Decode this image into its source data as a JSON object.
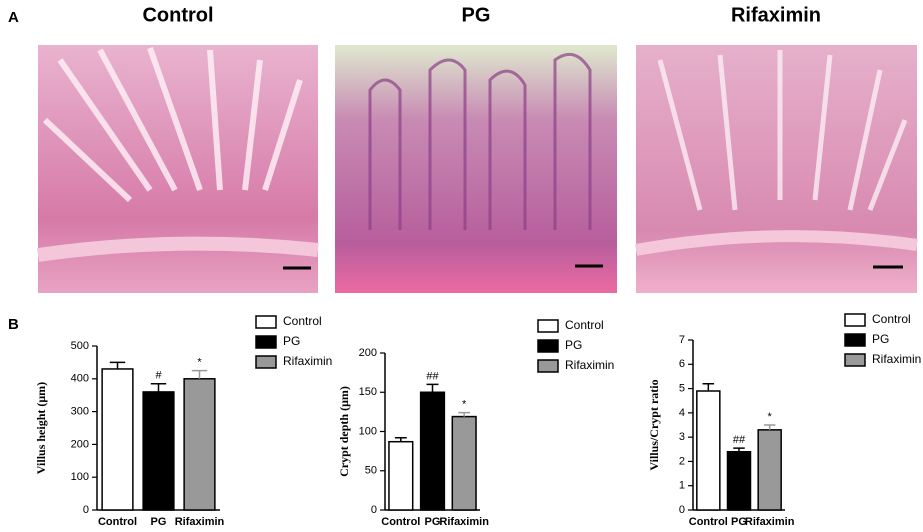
{
  "panels": {
    "a_label": "A",
    "b_label": "B",
    "images": [
      "Control",
      "PG",
      "Rifaximin"
    ]
  },
  "chart_data": [
    {
      "type": "bar",
      "ylabel": "Villus height (μm)",
      "categories": [
        "Control",
        "PG",
        "Rifaximin"
      ],
      "values": [
        430,
        360,
        400
      ],
      "errors": [
        20,
        25,
        25
      ],
      "annotations": [
        null,
        "#",
        "*"
      ],
      "colors": [
        "#ffffff",
        "#000000",
        "#999999"
      ],
      "ylim": [
        0,
        500
      ],
      "yticks": [
        0,
        100,
        200,
        300,
        400,
        500
      ]
    },
    {
      "type": "bar",
      "ylabel": "Crypt depth (μm)",
      "categories": [
        "Control",
        "PG",
        "Rifaximin"
      ],
      "values": [
        87,
        150,
        119
      ],
      "errors": [
        5,
        10,
        5
      ],
      "annotations": [
        null,
        "##",
        "*"
      ],
      "colors": [
        "#ffffff",
        "#000000",
        "#999999"
      ],
      "ylim": [
        0,
        200
      ],
      "yticks": [
        0,
        50,
        100,
        150,
        200
      ]
    },
    {
      "type": "bar",
      "ylabel": "Villus/Crypt ratio",
      "categories": [
        "Control",
        "PG",
        "Rifaximin"
      ],
      "values": [
        4.9,
        2.4,
        3.3
      ],
      "errors": [
        0.3,
        0.15,
        0.2
      ],
      "annotations": [
        null,
        "##",
        "*"
      ],
      "colors": [
        "#ffffff",
        "#000000",
        "#999999"
      ],
      "ylim": [
        0,
        7
      ],
      "yticks": [
        0,
        1,
        2,
        3,
        4,
        5,
        6,
        7
      ]
    }
  ]
}
